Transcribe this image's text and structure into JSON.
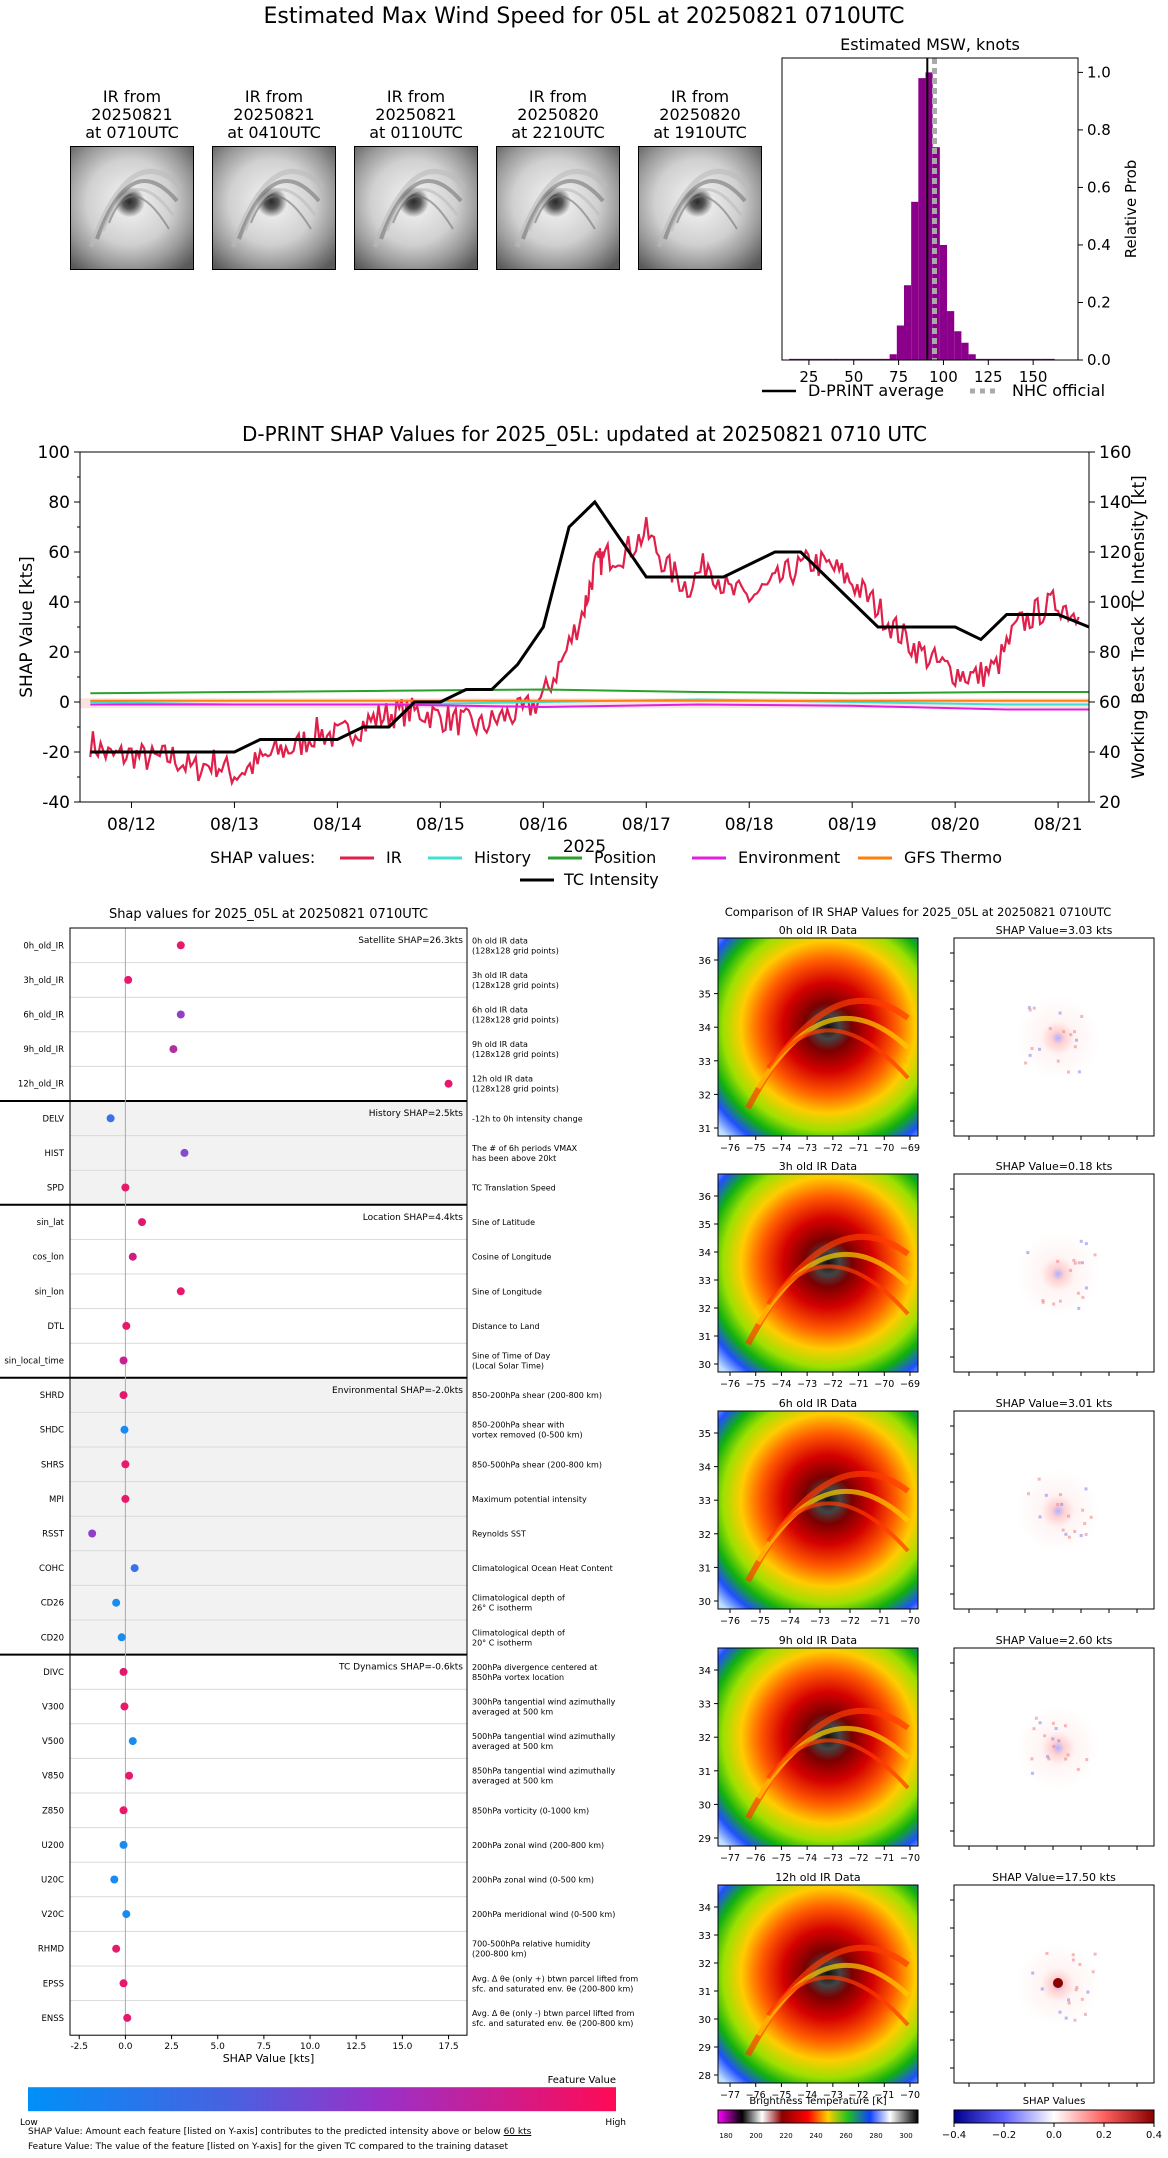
{
  "page": {
    "title": "Estimated Max Wind Speed for 05L at 20250821 0710UTC"
  },
  "satellite_panels": [
    {
      "l1": "IR from",
      "l2": "20250821",
      "l3": "at 0710UTC"
    },
    {
      "l1": "IR from",
      "l2": "20250821",
      "l3": "at 0410UTC"
    },
    {
      "l1": "IR from",
      "l2": "20250821",
      "l3": "at 0110UTC"
    },
    {
      "l1": "IR from",
      "l2": "20250820",
      "l3": "at 2210UTC"
    },
    {
      "l1": "IR from",
      "l2": "20250820",
      "l3": "at 1910UTC"
    }
  ],
  "chart_data": [
    {
      "id": "msw_hist",
      "type": "bar",
      "title": "Estimated MSW, knots",
      "ylabel": "Relative Prob",
      "xlim": [
        10,
        175
      ],
      "ylim": [
        0,
        1.05
      ],
      "xticks": [
        "25",
        "50",
        "75",
        "100",
        "125",
        "150"
      ],
      "yticks": [
        "0.0",
        "0.2",
        "0.4",
        "0.6",
        "0.8",
        "1.0"
      ],
      "bin_width": 4,
      "bins": [
        {
          "x": 16,
          "y": 0.004
        },
        {
          "x": 20,
          "y": 0.004
        },
        {
          "x": 24,
          "y": 0.004
        },
        {
          "x": 28,
          "y": 0.004
        },
        {
          "x": 32,
          "y": 0.004
        },
        {
          "x": 36,
          "y": 0.004
        },
        {
          "x": 40,
          "y": 0.004
        },
        {
          "x": 44,
          "y": 0.004
        },
        {
          "x": 48,
          "y": 0.004
        },
        {
          "x": 52,
          "y": 0.004
        },
        {
          "x": 56,
          "y": 0.004
        },
        {
          "x": 60,
          "y": 0.004
        },
        {
          "x": 64,
          "y": 0.004
        },
        {
          "x": 68,
          "y": 0.004
        },
        {
          "x": 72,
          "y": 0.02
        },
        {
          "x": 76,
          "y": 0.12
        },
        {
          "x": 80,
          "y": 0.26
        },
        {
          "x": 84,
          "y": 0.55
        },
        {
          "x": 88,
          "y": 0.98
        },
        {
          "x": 92,
          "y": 1.0
        },
        {
          "x": 96,
          "y": 0.74
        },
        {
          "x": 100,
          "y": 0.4
        },
        {
          "x": 104,
          "y": 0.17
        },
        {
          "x": 108,
          "y": 0.1
        },
        {
          "x": 112,
          "y": 0.06
        },
        {
          "x": 116,
          "y": 0.02
        },
        {
          "x": 120,
          "y": 0.004
        },
        {
          "x": 124,
          "y": 0.004
        },
        {
          "x": 128,
          "y": 0.004
        },
        {
          "x": 132,
          "y": 0.004
        },
        {
          "x": 136,
          "y": 0.004
        },
        {
          "x": 140,
          "y": 0.004
        },
        {
          "x": 144,
          "y": 0.004
        },
        {
          "x": 148,
          "y": 0.004
        },
        {
          "x": 152,
          "y": 0.004
        },
        {
          "x": 156,
          "y": 0.004
        },
        {
          "x": 160,
          "y": 0.004
        }
      ],
      "dprint_average": 91,
      "nhc_official": 95,
      "legend": [
        "D-PRINT average",
        "NHC official"
      ],
      "colors": {
        "bars": "#8b008b",
        "average": "#000000",
        "nhc": "#aaaaaa"
      }
    },
    {
      "id": "shap_timeseries",
      "type": "line",
      "title": "D-PRINT SHAP Values for 2025_05L: updated at 20250821 0710 UTC",
      "xlabel": "2025",
      "ylabel": "SHAP Value [kts]",
      "y2label": "Working Best Track TC Intensity [kt]",
      "xlim": [
        11.5,
        21.3
      ],
      "ylim": [
        -40,
        100
      ],
      "y2lim": [
        20,
        160
      ],
      "xticks": [
        "08/12",
        "08/13",
        "08/14",
        "08/15",
        "08/16",
        "08/17",
        "08/18",
        "08/19",
        "08/20",
        "08/21"
      ],
      "yticks": [
        "-40",
        "-20",
        "0",
        "20",
        "40",
        "60",
        "80",
        "100"
      ],
      "y2ticks": [
        "20",
        "40",
        "60",
        "80",
        "100",
        "120",
        "140",
        "160"
      ],
      "legend_prefix": "SHAP values:",
      "series": [
        {
          "name": "IR",
          "color": "#e0204a",
          "x": [
            11.6,
            11.8,
            12.0,
            12.2,
            12.4,
            12.6,
            12.8,
            13.0,
            13.2,
            13.4,
            13.6,
            13.8,
            14.0,
            14.2,
            14.4,
            14.6,
            14.8,
            15.0,
            15.2,
            15.4,
            15.6,
            15.8,
            16.0,
            16.2,
            16.4,
            16.5,
            16.6,
            16.8,
            17.0,
            17.2,
            17.4,
            17.6,
            17.8,
            18.0,
            18.2,
            18.4,
            18.6,
            18.8,
            19.0,
            19.2,
            19.4,
            19.6,
            19.8,
            20.0,
            20.2,
            20.4,
            20.6,
            20.8,
            21.0,
            21.2
          ],
          "y": [
            -16,
            -22,
            -21,
            -23,
            -22,
            -27,
            -24,
            -29,
            -25,
            -20,
            -18,
            -12,
            -14,
            -10,
            -6,
            -4,
            -4,
            -6,
            -8,
            -10,
            -6,
            -4,
            2,
            18,
            38,
            54,
            58,
            60,
            68,
            54,
            46,
            56,
            44,
            42,
            46,
            52,
            56,
            54,
            48,
            40,
            30,
            22,
            16,
            12,
            10,
            14,
            30,
            36,
            40,
            34
          ]
        },
        {
          "name": "History",
          "color": "#40e0d0",
          "x": [
            11.6,
            13.0,
            14.5,
            16.0,
            17.5,
            19.0,
            20.5,
            21.3
          ],
          "y": [
            0,
            -1,
            -1,
            0,
            1,
            0,
            -1,
            -1
          ]
        },
        {
          "name": "Position",
          "color": "#2ca02c",
          "x": [
            11.6,
            13.0,
            14.5,
            16.0,
            17.5,
            19.0,
            20.5,
            21.3
          ],
          "y": [
            3.5,
            4,
            4.5,
            5,
            4,
            3.5,
            4,
            4
          ]
        },
        {
          "name": "Environment",
          "color": "#e020e0",
          "x": [
            11.6,
            13.0,
            14.5,
            16.0,
            17.5,
            19.0,
            20.5,
            21.3
          ],
          "y": [
            -1,
            -1,
            -1,
            -2,
            -1,
            -1.5,
            -3,
            -3
          ]
        },
        {
          "name": "GFS Thermo",
          "color": "#ff7f0e",
          "x": [
            11.6,
            13.0,
            14.5,
            16.0,
            17.5,
            19.0,
            20.5,
            21.3
          ],
          "y": [
            0.5,
            0.5,
            0.5,
            0.5,
            0.5,
            0.5,
            0.5,
            0.5
          ]
        }
      ],
      "intensity": {
        "name": "TC Intensity",
        "color": "#000000",
        "x": [
          11.6,
          12.0,
          12.5,
          13.0,
          13.25,
          13.5,
          13.75,
          14.0,
          14.25,
          14.5,
          14.75,
          15.0,
          15.25,
          15.5,
          15.75,
          16.0,
          16.25,
          16.5,
          16.75,
          17.0,
          17.25,
          17.5,
          17.75,
          18.0,
          18.25,
          18.5,
          18.75,
          19.0,
          19.25,
          19.5,
          19.75,
          20.0,
          20.25,
          20.5,
          20.75,
          21.0,
          21.3
        ],
        "y": [
          40,
          40,
          40,
          40,
          45,
          45,
          45,
          45,
          50,
          50,
          60,
          60,
          65,
          65,
          75,
          90,
          130,
          140,
          125,
          110,
          110,
          110,
          110,
          115,
          120,
          120,
          110,
          100,
          90,
          90,
          90,
          90,
          85,
          95,
          95,
          95,
          90
        ]
      }
    },
    {
      "id": "shap_features",
      "type": "scatter",
      "title": "Shap values for 2025_05L at 20250821 0710UTC",
      "xlabel": "SHAP Value [kts]",
      "xlim": [
        -3,
        18.5
      ],
      "xticks": [
        "-2.5",
        "0.0",
        "2.5",
        "5.0",
        "7.5",
        "10.0",
        "12.5",
        "15.0",
        "17.5"
      ],
      "colorbar": {
        "title": "Feature Value",
        "low": "Low",
        "high": "High"
      },
      "groups": [
        {
          "label": "Satellite SHAP=26.3kts",
          "shaded": false,
          "features": [
            {
              "name": "0h_old_IR",
              "shap": 3.0,
              "color": "#e8186c",
              "desc1": "0h old IR data",
              "desc2": "(128x128 grid points)"
            },
            {
              "name": "3h_old_IR",
              "shap": 0.15,
              "color": "#e8186c",
              "desc1": "3h old IR data",
              "desc2": "(128x128 grid points)"
            },
            {
              "name": "6h_old_IR",
              "shap": 3.0,
              "color": "#9040c8",
              "desc1": "6h old IR data",
              "desc2": "(128x128 grid points)"
            },
            {
              "name": "9h_old_IR",
              "shap": 2.6,
              "color": "#b030a0",
              "desc1": "9h old IR data",
              "desc2": "(128x128 grid points)"
            },
            {
              "name": "12h_old_IR",
              "shap": 17.5,
              "color": "#e8186c",
              "desc1": "12h old IR data",
              "desc2": "(128x128 grid points)"
            }
          ]
        },
        {
          "label": "History SHAP=2.5kts",
          "shaded": true,
          "features": [
            {
              "name": "DELV",
              "shap": -0.8,
              "color": "#3a70e8",
              "desc1": "-12h to 0h intensity change",
              "desc2": ""
            },
            {
              "name": "HIST",
              "shap": 3.2,
              "color": "#8848d0",
              "desc1": "The # of 6h periods VMAX",
              "desc2": "has been above 20kt"
            },
            {
              "name": "SPD",
              "shap": 0.0,
              "color": "#e8186c",
              "desc1": "TC Translation Speed",
              "desc2": ""
            }
          ]
        },
        {
          "label": "Location SHAP=4.4kts",
          "shaded": false,
          "features": [
            {
              "name": "sin_lat",
              "shap": 0.9,
              "color": "#e0186e",
              "desc1": "Sine of Latitude",
              "desc2": ""
            },
            {
              "name": "cos_lon",
              "shap": 0.4,
              "color": "#d01c80",
              "desc1": "Cosine of Longitude",
              "desc2": ""
            },
            {
              "name": "sin_lon",
              "shap": 3.0,
              "color": "#e8186c",
              "desc1": "Sine of Longitude",
              "desc2": ""
            },
            {
              "name": "DTL",
              "shap": 0.05,
              "color": "#e8186c",
              "desc1": "Distance to Land",
              "desc2": ""
            },
            {
              "name": "sin_local_time",
              "shap": -0.1,
              "color": "#c82090",
              "desc1": "Sine of Time of Day",
              "desc2": "(Local Solar Time)"
            }
          ]
        },
        {
          "label": "Environmental SHAP=-2.0kts",
          "shaded": true,
          "features": [
            {
              "name": "SHRD",
              "shap": -0.1,
              "color": "#e0186e",
              "desc1": "850-200hPa shear (200-800 km)",
              "desc2": ""
            },
            {
              "name": "SHDC",
              "shap": -0.05,
              "color": "#1a8cf0",
              "desc1": "850-200hPa shear with",
              "desc2": "vortex removed (0-500 km)"
            },
            {
              "name": "SHRS",
              "shap": 0.0,
              "color": "#e8186c",
              "desc1": "850-500hPa shear (200-800 km)",
              "desc2": ""
            },
            {
              "name": "MPI",
              "shap": 0.0,
              "color": "#e8186c",
              "desc1": "Maximum potential intensity",
              "desc2": ""
            },
            {
              "name": "RSST",
              "shap": -1.8,
              "color": "#9040c8",
              "desc1": "Reynolds SST",
              "desc2": ""
            },
            {
              "name": "COHC",
              "shap": 0.5,
              "color": "#3a70e8",
              "desc1": "Climatological Ocean Heat Content",
              "desc2": ""
            },
            {
              "name": "CD26",
              "shap": -0.5,
              "color": "#1a8cf0",
              "desc1": "Climatological depth of",
              "desc2": "26° C isotherm"
            },
            {
              "name": "CD20",
              "shap": -0.2,
              "color": "#1a8cf0",
              "desc1": "Climatological depth of",
              "desc2": "20° C isotherm"
            }
          ]
        },
        {
          "label": "TC Dynamics SHAP=-0.6kts",
          "shaded": false,
          "features": [
            {
              "name": "DIVC",
              "shap": -0.1,
              "color": "#e0186e",
              "desc1": "200hPa divergence centered at",
              "desc2": "850hPa vortex location"
            },
            {
              "name": "V300",
              "shap": -0.05,
              "color": "#e8186c",
              "desc1": "300hPa tangential wind azimuthally",
              "desc2": "averaged at 500 km"
            },
            {
              "name": "V500",
              "shap": 0.4,
              "color": "#1a8cf0",
              "desc1": "500hPa tangential wind azimuthally",
              "desc2": "averaged at 500 km"
            },
            {
              "name": "V850",
              "shap": 0.2,
              "color": "#e8186c",
              "desc1": "850hPa tangential wind azimuthally",
              "desc2": "averaged at 500 km"
            },
            {
              "name": "Z850",
              "shap": -0.1,
              "color": "#e8186c",
              "desc1": "850hPa vorticity (0-1000 km)",
              "desc2": ""
            },
            {
              "name": "U200",
              "shap": -0.1,
              "color": "#1a8cf0",
              "desc1": "200hPa zonal wind (200-800 km)",
              "desc2": ""
            },
            {
              "name": "U20C",
              "shap": -0.6,
              "color": "#1a8cf0",
              "desc1": "200hPa zonal wind (0-500 km)",
              "desc2": ""
            },
            {
              "name": "V20C",
              "shap": 0.05,
              "color": "#1a8cf0",
              "desc1": "200hPa meridional wind (0-500 km)",
              "desc2": ""
            },
            {
              "name": "RHMD",
              "shap": -0.5,
              "color": "#e8186c",
              "desc1": "700-500hPa relative humidity",
              "desc2": "(200-800 km)"
            },
            {
              "name": "EPSS",
              "shap": -0.1,
              "color": "#e8186c",
              "desc1": "Avg. Δ θe (only +) btwn parcel lifted from",
              "desc2": "sfc. and saturated env. θe (200-800 km)"
            },
            {
              "name": "ENSS",
              "shap": 0.1,
              "color": "#e8186c",
              "desc1": "Avg. Δ θe (only -) btwn parcel lifted from",
              "desc2": "sfc. and saturated env. θe (200-800 km)"
            }
          ]
        }
      ]
    }
  ],
  "ir_comparison": {
    "title": "Comparison of IR SHAP Values for 2025_05L at 20250821 0710UTC",
    "rows": [
      {
        "ir_title": "0h old IR Data",
        "shap_title": "SHAP Value=3.03 kts",
        "yticks": [
          "36",
          "35",
          "34",
          "33",
          "32",
          "31"
        ],
        "xticks": [
          "−76",
          "−75",
          "−74",
          "−73",
          "−72",
          "−71",
          "−70",
          "−69"
        ]
      },
      {
        "ir_title": "3h old IR Data",
        "shap_title": "SHAP Value=0.18 kts",
        "yticks": [
          "36",
          "35",
          "34",
          "33",
          "32",
          "31",
          "30"
        ],
        "xticks": [
          "−76",
          "−75",
          "−74",
          "−73",
          "−72",
          "−71",
          "−70",
          "−69"
        ]
      },
      {
        "ir_title": "6h old IR Data",
        "shap_title": "SHAP Value=3.01 kts",
        "yticks": [
          "35",
          "34",
          "33",
          "32",
          "31",
          "30"
        ],
        "xticks": [
          "−76",
          "−75",
          "−74",
          "−73",
          "−72",
          "−71",
          "−70"
        ]
      },
      {
        "ir_title": "9h old IR Data",
        "shap_title": "SHAP Value=2.60 kts",
        "yticks": [
          "34",
          "33",
          "32",
          "31",
          "30",
          "29"
        ],
        "xticks": [
          "−77",
          "−76",
          "−75",
          "−74",
          "−73",
          "−72",
          "−71",
          "−70"
        ]
      },
      {
        "ir_title": "12h old IR Data",
        "shap_title": "SHAP Value=17.50 kts",
        "yticks": [
          "34",
          "33",
          "32",
          "31",
          "30",
          "29",
          "28"
        ],
        "xticks": [
          "−77",
          "−76",
          "−75",
          "−74",
          "−73",
          "−72",
          "−71",
          "−70"
        ]
      }
    ],
    "bt_colorbar": {
      "label": "Brightness Temperature [K]",
      "ticks": [
        "180",
        "200",
        "220",
        "240",
        "260",
        "280",
        "300"
      ]
    },
    "shap_colorbar": {
      "label": "SHAP Values",
      "ticks": [
        "−0.4",
        "−0.2",
        "0.0",
        "0.2",
        "0.4"
      ]
    }
  },
  "footnotes": {
    "line1_a": "SHAP Value: Amount each feature [listed on Y-axis] contributes to the predicted intensity above or below ",
    "line1_b": "60 kts",
    "line2": "Feature Value: The value of the feature [listed on Y-axis] for the given TC compared to the training dataset"
  }
}
